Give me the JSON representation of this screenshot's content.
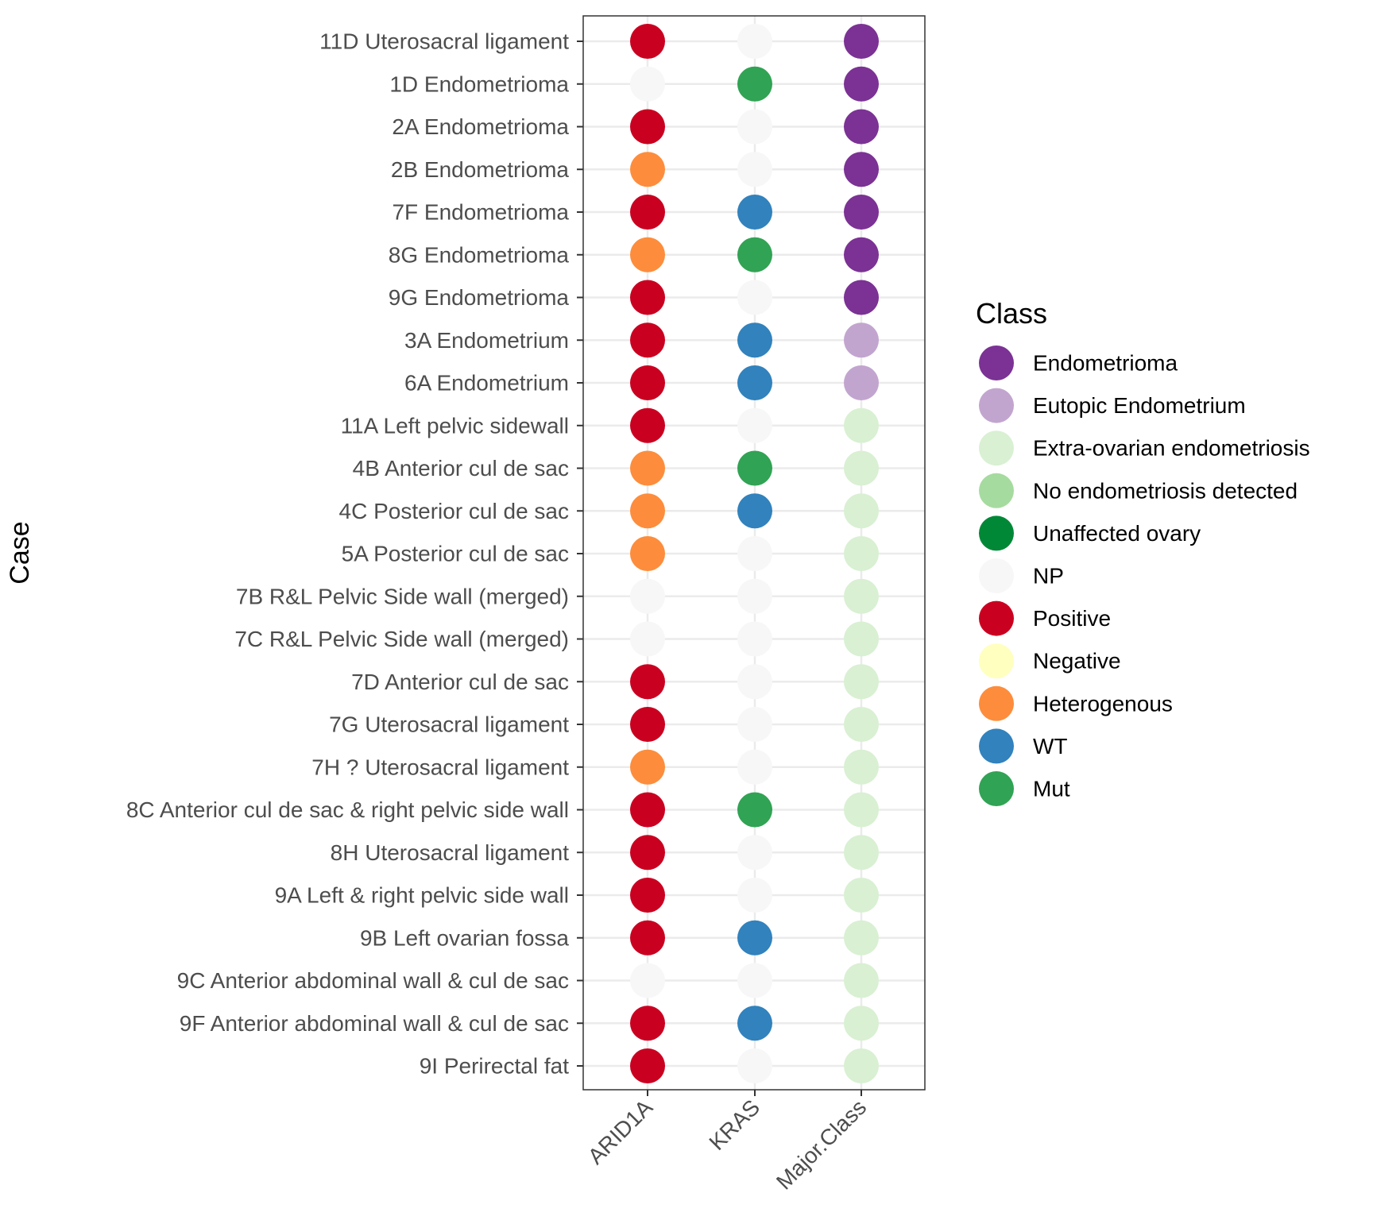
{
  "chart_data": {
    "type": "scatter",
    "ylabel": "Case",
    "xlabel": "",
    "categories_x": [
      "ARID1A",
      "KRAS",
      "Major.Class"
    ],
    "categories_y": [
      "11D Uterosacral ligament",
      "1D Endometrioma",
      "2A Endometrioma",
      "2B Endometrioma",
      "7F Endometrioma",
      "8G Endometrioma",
      "9G Endometrioma",
      "3A Endometrium",
      "6A Endometrium",
      "11A Left pelvic sidewall",
      "4B Anterior cul de sac",
      "4C Posterior cul de sac",
      "5A Posterior cul de sac",
      "7B R&L Pelvic Side wall (merged)",
      "7C R&L Pelvic Side wall (merged)",
      "7D Anterior cul de sac",
      "7G Uterosacral ligament",
      "7H ? Uterosacral ligament",
      "8C Anterior cul de sac & right pelvic side wall",
      "8H Uterosacral ligament",
      "9A Left & right pelvic side wall",
      "9B Left ovarian fossa",
      "9C Anterior abdominal wall & cul de sac",
      "9F Anterior abdominal wall & cul de sac",
      "9I Perirectal fat"
    ],
    "values": {
      "ARID1A": [
        "Positive",
        "NP",
        "Positive",
        "Heterogenous",
        "Positive",
        "Heterogenous",
        "Positive",
        "Positive",
        "Positive",
        "Positive",
        "Heterogenous",
        "Heterogenous",
        "Heterogenous",
        "NP",
        "NP",
        "Positive",
        "Positive",
        "Heterogenous",
        "Positive",
        "Positive",
        "Positive",
        "Positive",
        "NP",
        "Positive",
        "Positive"
      ],
      "KRAS": [
        "NP",
        "Mut",
        "NP",
        "NP",
        "WT",
        "Mut",
        "NP",
        "WT",
        "WT",
        "NP",
        "Mut",
        "WT",
        "NP",
        "NP",
        "NP",
        "NP",
        "NP",
        "NP",
        "Mut",
        "NP",
        "NP",
        "WT",
        "NP",
        "WT",
        "NP"
      ],
      "Major.Class": [
        "Endometrioma",
        "Endometrioma",
        "Endometrioma",
        "Endometrioma",
        "Endometrioma",
        "Endometrioma",
        "Endometrioma",
        "Eutopic Endometrium",
        "Eutopic Endometrium",
        "Extra-ovarian endometriosis",
        "Extra-ovarian endometriosis",
        "Extra-ovarian endometriosis",
        "Extra-ovarian endometriosis",
        "Extra-ovarian endometriosis",
        "Extra-ovarian endometriosis",
        "Extra-ovarian endometriosis",
        "Extra-ovarian endometriosis",
        "Extra-ovarian endometriosis",
        "Extra-ovarian endometriosis",
        "Extra-ovarian endometriosis",
        "Extra-ovarian endometriosis",
        "Extra-ovarian endometriosis",
        "Extra-ovarian endometriosis",
        "Extra-ovarian endometriosis",
        "Extra-ovarian endometriosis"
      ]
    },
    "legend": {
      "title": "Class",
      "placement": "right",
      "entries": [
        {
          "label": "Endometrioma",
          "color": "#7b3294"
        },
        {
          "label": "Eutopic Endometrium",
          "color": "#c2a5cf"
        },
        {
          "label": "Extra-ovarian endometriosis",
          "color": "#d9f0d3"
        },
        {
          "label": "No endometriosis detected",
          "color": "#a6dba0"
        },
        {
          "label": "Unaffected ovary",
          "color": "#008837"
        },
        {
          "label": "NP",
          "color": "#f7f7f7"
        },
        {
          "label": "Positive",
          "color": "#ca0020"
        },
        {
          "label": "Negative",
          "color": "#ffffbf"
        },
        {
          "label": "Heterogenous",
          "color": "#fd8d3c"
        },
        {
          "label": "WT",
          "color": "#3182bd"
        },
        {
          "label": "Mut",
          "color": "#31a354"
        }
      ]
    },
    "grid": true
  }
}
